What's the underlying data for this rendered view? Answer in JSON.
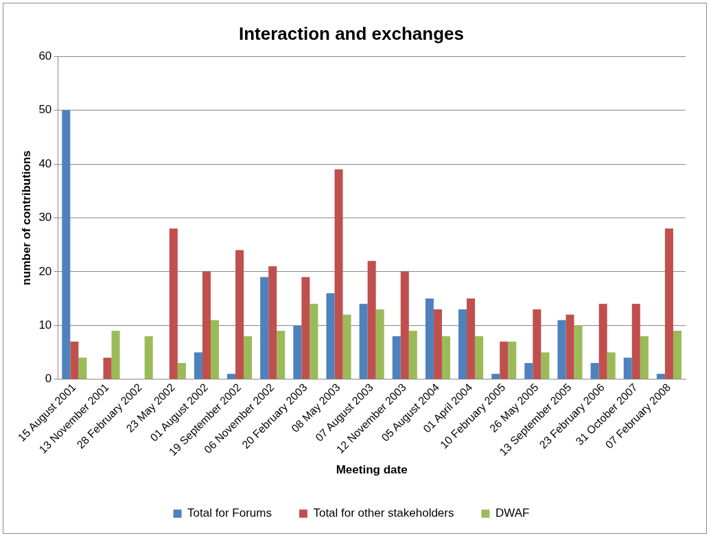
{
  "chart_data": {
    "type": "bar",
    "title": "Interaction and exchanges",
    "xlabel": "Meeting date",
    "ylabel": "number of contributions",
    "categories": [
      "15 August 2001",
      "13 November 2001",
      "28 February 2002",
      "23 May 2002",
      "01 August 2002",
      "19 September 2002",
      "06 November 2002",
      "20 February 2003",
      "08 May 2003",
      "07 August 2003",
      "12 November 2003",
      "05 August 2004",
      "01 April 2004",
      "10 February 2005",
      "26 May 2005",
      "13 September 2005",
      "23 February 2006",
      "31 October 2007",
      "07 February 2008"
    ],
    "series": [
      {
        "name": "Total for Forums",
        "color": "#4f81bd",
        "values": [
          50,
          0,
          0,
          0,
          5,
          1,
          19,
          10,
          16,
          14,
          8,
          15,
          13,
          1,
          3,
          11,
          3,
          4,
          1
        ]
      },
      {
        "name": "Total for other stakeholders",
        "color": "#c0504d",
        "values": [
          7,
          4,
          0,
          28,
          20,
          24,
          21,
          19,
          39,
          22,
          20,
          13,
          15,
          7,
          13,
          12,
          14,
          14,
          28
        ]
      },
      {
        "name": "DWAF",
        "color": "#9bbb59",
        "values": [
          4,
          9,
          8,
          3,
          11,
          8,
          9,
          14,
          12,
          13,
          9,
          8,
          8,
          7,
          5,
          10,
          5,
          8,
          9
        ]
      }
    ],
    "ylim": [
      0,
      60
    ],
    "yticks": [
      0,
      10,
      20,
      30,
      40,
      50,
      60
    ],
    "grid": "y",
    "legend": "bottom"
  }
}
